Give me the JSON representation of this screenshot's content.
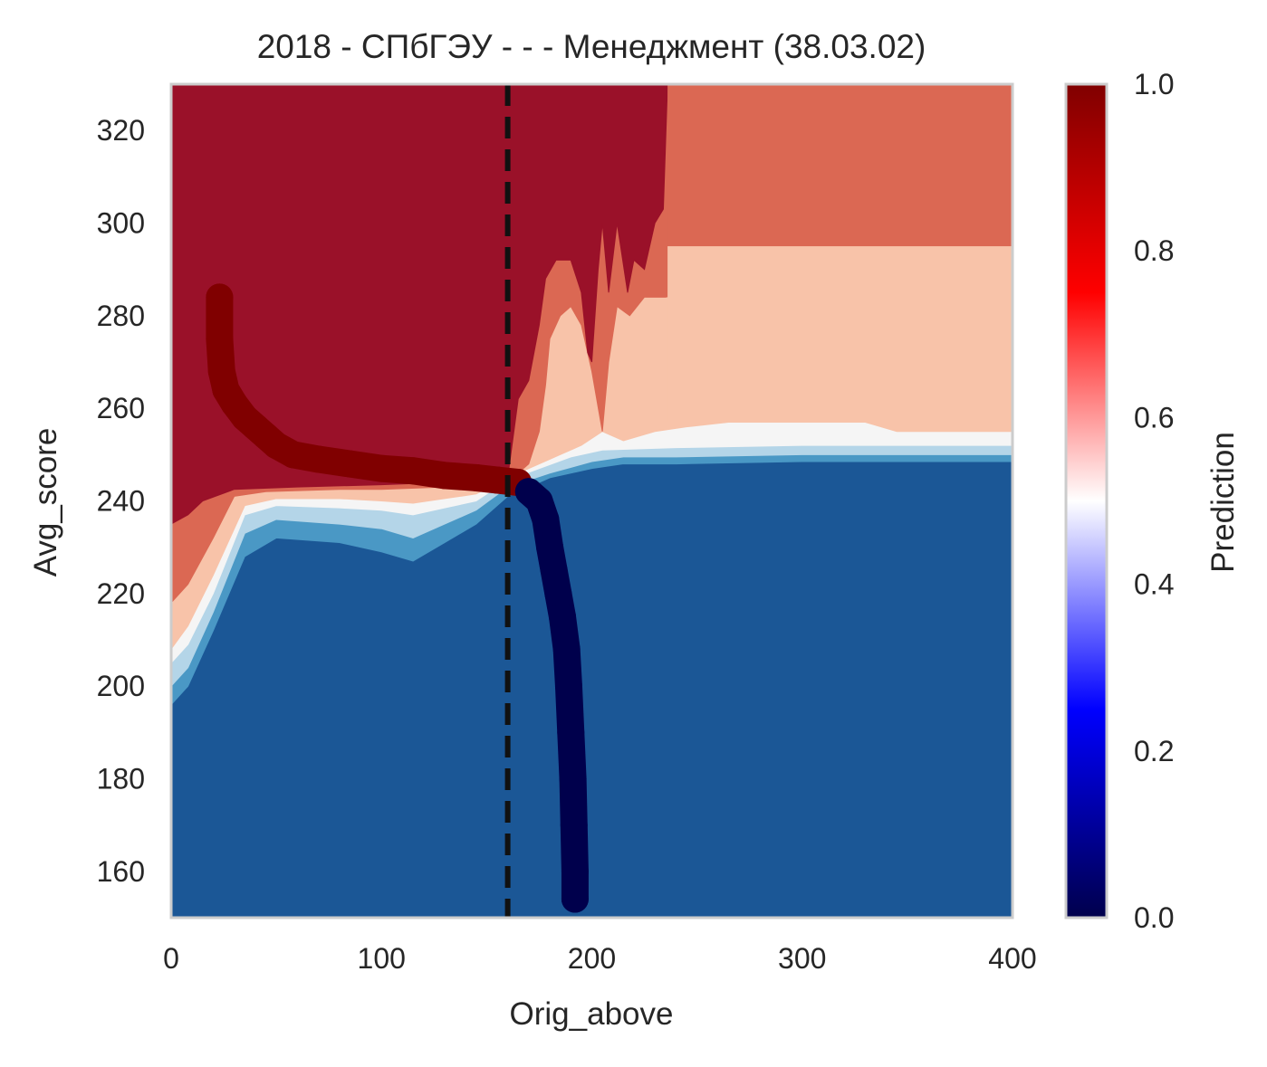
{
  "chart_data": {
    "type": "heatmap",
    "title": "2018 - СПбГЭУ - - - Менеджмент (38.03.02)",
    "xlabel": "Orig_above",
    "ylabel": "Avg_score",
    "xlim": [
      0,
      400
    ],
    "ylim": [
      150,
      330
    ],
    "xticks": [
      0,
      100,
      200,
      300,
      400
    ],
    "yticks": [
      160,
      180,
      200,
      220,
      240,
      260,
      280,
      300,
      320
    ],
    "grid": false,
    "vline": {
      "x": 160,
      "style": "dashed",
      "color": "#111111"
    },
    "colorbar": {
      "label": "Prediction",
      "range": [
        0,
        1
      ],
      "ticks": [
        "0.0",
        "0.2",
        "0.4",
        "0.6",
        "0.8",
        "1.0"
      ],
      "colormap": "seismic"
    },
    "contour_levels": [
      {
        "level": "0.0-0.2",
        "color": "#1b5796"
      },
      {
        "level": "0.2-0.35",
        "color": "#4a98c5"
      },
      {
        "level": "0.35-0.45",
        "color": "#b4d5e8"
      },
      {
        "level": "0.45-0.55",
        "color": "#f5f5f5"
      },
      {
        "level": "0.55-0.7",
        "color": "#f8c3a9"
      },
      {
        "level": "0.7-0.85",
        "color": "#db6853"
      },
      {
        "level": "0.85-1.0",
        "color": "#9a1129"
      }
    ],
    "boundary_curve": {
      "description_colors": {
        "above": "#800000",
        "below": "#00004c"
      },
      "points_above": [
        [
          23,
          284
        ],
        [
          23,
          275
        ],
        [
          24,
          268
        ],
        [
          26,
          264
        ],
        [
          30,
          261
        ],
        [
          35,
          258
        ],
        [
          40,
          256
        ],
        [
          45,
          254
        ],
        [
          50,
          252
        ],
        [
          58,
          250
        ],
        [
          70,
          249
        ],
        [
          85,
          248
        ],
        [
          100,
          247
        ],
        [
          115,
          246.5
        ],
        [
          130,
          245.5
        ],
        [
          145,
          245
        ],
        [
          155,
          244.5
        ],
        [
          165,
          244
        ]
      ],
      "points_below": [
        [
          170,
          242
        ],
        [
          175,
          240
        ],
        [
          178,
          236
        ],
        [
          180,
          230
        ],
        [
          182,
          225
        ],
        [
          184,
          220
        ],
        [
          186,
          215
        ],
        [
          188,
          208
        ],
        [
          189,
          200
        ],
        [
          190,
          190
        ],
        [
          191,
          180
        ],
        [
          191.5,
          170
        ],
        [
          192,
          160
        ],
        [
          192,
          154
        ]
      ]
    }
  }
}
